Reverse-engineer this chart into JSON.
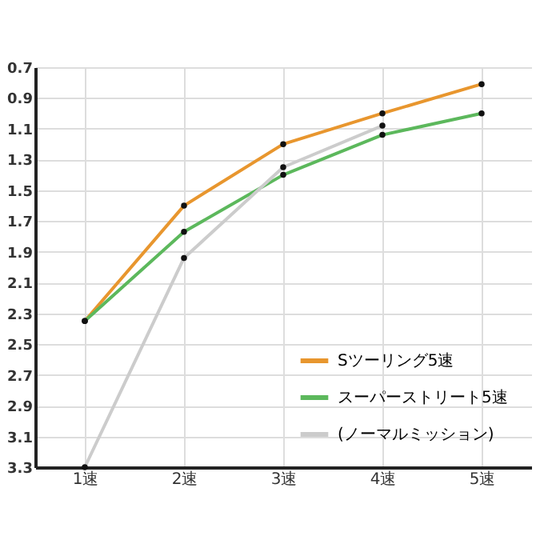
{
  "chart_data": {
    "type": "line",
    "categories": [
      "1速",
      "2速",
      "3速",
      "4速",
      "5速"
    ],
    "series": [
      {
        "name": "Sツーリング5速",
        "color": "#e8962e",
        "values": [
          2.35,
          1.6,
          1.2,
          1.0,
          0.81
        ]
      },
      {
        "name": "スーパーストリート5速",
        "color": "#5cb85c",
        "values": [
          2.35,
          1.77,
          1.4,
          1.14,
          1.0
        ]
      },
      {
        "name": "(ノーマルミッション)",
        "color": "#cccccc",
        "values": [
          3.3,
          1.94,
          1.35,
          1.08,
          null
        ]
      }
    ],
    "ylim": [
      3.3,
      0.7
    ],
    "yticks": [
      0.7,
      0.9,
      1.1,
      1.3,
      1.5,
      1.7,
      1.9,
      2.1,
      2.3,
      2.5,
      2.7,
      2.9,
      3.1,
      3.3
    ],
    "grid": true,
    "legend": "bottom right",
    "marker": "circle",
    "line_style": "solid"
  }
}
